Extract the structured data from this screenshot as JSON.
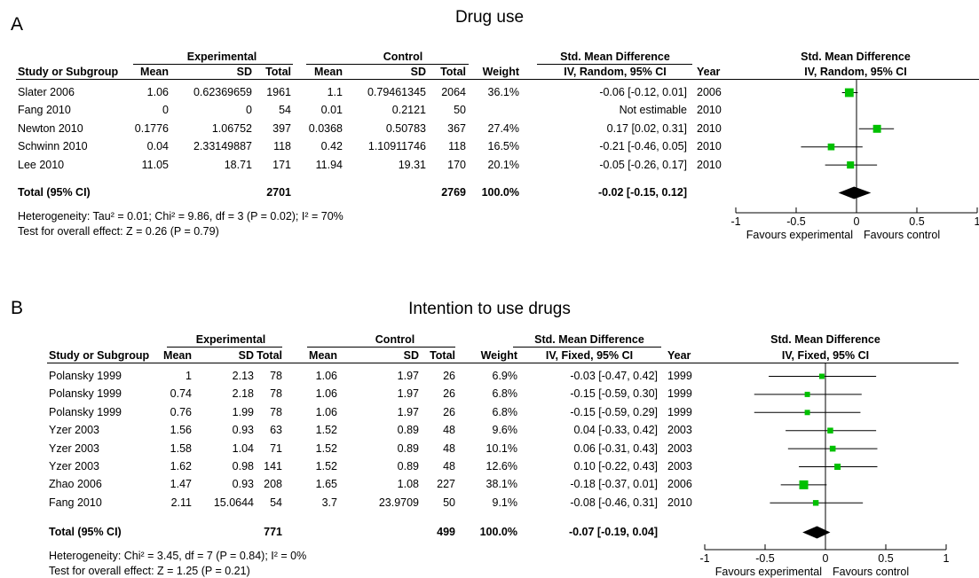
{
  "chart_data": [
    {
      "type": "forest",
      "panel_label": "A",
      "title": "Drug use",
      "headers": {
        "group_experimental": "Experimental",
        "group_control": "Control",
        "smd_top": "Std. Mean Difference",
        "smd_method": "IV, Random, 95% CI",
        "plot_top": "Std. Mean Difference",
        "plot_method": "IV, Random, 95% CI",
        "study": "Study or Subgroup",
        "mean": "Mean",
        "sd": "SD",
        "total": "Total",
        "weight": "Weight",
        "year": "Year"
      },
      "studies": [
        {
          "name": "Slater 2006",
          "exp_mean": "1.06",
          "exp_sd": "0.62369659",
          "exp_total": "1961",
          "ctl_mean": "1.1",
          "ctl_sd": "0.79461345",
          "ctl_total": "2064",
          "weight": "36.1%",
          "ci_text": "-0.06 [-0.12, 0.01]",
          "year": "2006",
          "est": -0.06,
          "lo": -0.12,
          "hi": 0.01,
          "w": 36.1
        },
        {
          "name": "Fang 2010",
          "exp_mean": "0",
          "exp_sd": "0",
          "exp_total": "54",
          "ctl_mean": "0.01",
          "ctl_sd": "0.2121",
          "ctl_total": "50",
          "weight": "",
          "ci_text": "Not estimable",
          "year": "2010",
          "est": null,
          "lo": null,
          "hi": null,
          "w": 0
        },
        {
          "name": "Newton 2010",
          "exp_mean": "0.1776",
          "exp_sd": "1.06752",
          "exp_total": "397",
          "ctl_mean": "0.0368",
          "ctl_sd": "0.50783",
          "ctl_total": "367",
          "weight": "27.4%",
          "ci_text": "0.17 [0.02, 0.31]",
          "year": "2010",
          "est": 0.17,
          "lo": 0.02,
          "hi": 0.31,
          "w": 27.4
        },
        {
          "name": "Schwinn 2010",
          "exp_mean": "0.04",
          "exp_sd": "2.33149887",
          "exp_total": "118",
          "ctl_mean": "0.42",
          "ctl_sd": "1.10911746",
          "ctl_total": "118",
          "weight": "16.5%",
          "ci_text": "-0.21 [-0.46, 0.05]",
          "year": "2010",
          "est": -0.21,
          "lo": -0.46,
          "hi": 0.05,
          "w": 16.5
        },
        {
          "name": "Lee 2010",
          "exp_mean": "11.05",
          "exp_sd": "18.71",
          "exp_total": "171",
          "ctl_mean": "11.94",
          "ctl_sd": "19.31",
          "ctl_total": "170",
          "weight": "20.1%",
          "ci_text": "-0.05 [-0.26, 0.17]",
          "year": "2010",
          "est": -0.05,
          "lo": -0.26,
          "hi": 0.17,
          "w": 20.1
        }
      ],
      "total": {
        "label": "Total (95% CI)",
        "exp_total": "2701",
        "ctl_total": "2769",
        "weight": "100.0%",
        "ci_text": "-0.02 [-0.15, 0.12]",
        "est": -0.02,
        "lo": -0.15,
        "hi": 0.12
      },
      "heterogeneity": "Heterogeneity: Tau² = 0.01; Chi² = 9.86, df = 3 (P = 0.02); I² = 70%",
      "overall_effect": "Test for overall effect: Z = 0.26 (P = 0.79)",
      "x_ticks": [
        -1,
        -0.5,
        0,
        0.5,
        1
      ],
      "x_tick_labels": [
        "-1",
        "-0.5",
        "0",
        "0.5",
        "1"
      ],
      "xlim": [
        -1,
        1
      ],
      "favours_left": "Favours experimental",
      "favours_right": "Favours control",
      "marker_color": "#00c000"
    },
    {
      "type": "forest",
      "panel_label": "B",
      "title": "Intention to use drugs",
      "headers": {
        "group_experimental": "Experimental",
        "group_control": "Control",
        "smd_top": "Std. Mean Difference",
        "smd_method": "IV, Fixed, 95% CI",
        "plot_top": "Std. Mean Difference",
        "plot_method": "IV, Fixed, 95% CI",
        "study": "Study or Subgroup",
        "mean": "Mean",
        "sd": "SD",
        "total": "Total",
        "weight": "Weight",
        "year": "Year"
      },
      "studies": [
        {
          "name": "Polansky 1999",
          "exp_mean": "1",
          "exp_sd": "2.13",
          "exp_total": "78",
          "ctl_mean": "1.06",
          "ctl_sd": "1.97",
          "ctl_total": "26",
          "weight": "6.9%",
          "ci_text": "-0.03 [-0.47, 0.42]",
          "year": "1999",
          "est": -0.03,
          "lo": -0.47,
          "hi": 0.42,
          "w": 6.9
        },
        {
          "name": "Polansky 1999",
          "exp_mean": "0.74",
          "exp_sd": "2.18",
          "exp_total": "78",
          "ctl_mean": "1.06",
          "ctl_sd": "1.97",
          "ctl_total": "26",
          "weight": "6.8%",
          "ci_text": "-0.15 [-0.59, 0.30]",
          "year": "1999",
          "est": -0.15,
          "lo": -0.59,
          "hi": 0.3,
          "w": 6.8
        },
        {
          "name": "Polansky 1999",
          "exp_mean": "0.76",
          "exp_sd": "1.99",
          "exp_total": "78",
          "ctl_mean": "1.06",
          "ctl_sd": "1.97",
          "ctl_total": "26",
          "weight": "6.8%",
          "ci_text": "-0.15 [-0.59, 0.29]",
          "year": "1999",
          "est": -0.15,
          "lo": -0.59,
          "hi": 0.29,
          "w": 6.8
        },
        {
          "name": "Yzer 2003",
          "exp_mean": "1.56",
          "exp_sd": "0.93",
          "exp_total": "63",
          "ctl_mean": "1.52",
          "ctl_sd": "0.89",
          "ctl_total": "48",
          "weight": "9.6%",
          "ci_text": "0.04 [-0.33, 0.42]",
          "year": "2003",
          "est": 0.04,
          "lo": -0.33,
          "hi": 0.42,
          "w": 9.6
        },
        {
          "name": "Yzer 2003",
          "exp_mean": "1.58",
          "exp_sd": "1.04",
          "exp_total": "71",
          "ctl_mean": "1.52",
          "ctl_sd": "0.89",
          "ctl_total": "48",
          "weight": "10.1%",
          "ci_text": "0.06 [-0.31, 0.43]",
          "year": "2003",
          "est": 0.06,
          "lo": -0.31,
          "hi": 0.43,
          "w": 10.1
        },
        {
          "name": "Yzer 2003",
          "exp_mean": "1.62",
          "exp_sd": "0.98",
          "exp_total": "141",
          "ctl_mean": "1.52",
          "ctl_sd": "0.89",
          "ctl_total": "48",
          "weight": "12.6%",
          "ci_text": "0.10 [-0.22, 0.43]",
          "year": "2003",
          "est": 0.1,
          "lo": -0.22,
          "hi": 0.43,
          "w": 12.6
        },
        {
          "name": "Zhao 2006",
          "exp_mean": "1.47",
          "exp_sd": "0.93",
          "exp_total": "208",
          "ctl_mean": "1.65",
          "ctl_sd": "1.08",
          "ctl_total": "227",
          "weight": "38.1%",
          "ci_text": "-0.18 [-0.37, 0.01]",
          "year": "2006",
          "est": -0.18,
          "lo": -0.37,
          "hi": 0.01,
          "w": 38.1
        },
        {
          "name": "Fang 2010",
          "exp_mean": "2.11",
          "exp_sd": "15.0644",
          "exp_total": "54",
          "ctl_mean": "3.7",
          "ctl_sd": "23.9709",
          "ctl_total": "50",
          "weight": "9.1%",
          "ci_text": "-0.08 [-0.46, 0.31]",
          "year": "2010",
          "est": -0.08,
          "lo": -0.46,
          "hi": 0.31,
          "w": 9.1
        }
      ],
      "total": {
        "label": "Total (95% CI)",
        "exp_total": "771",
        "ctl_total": "499",
        "weight": "100.0%",
        "ci_text": "-0.07 [-0.19, 0.04]",
        "est": -0.07,
        "lo": -0.19,
        "hi": 0.04
      },
      "heterogeneity": "Heterogeneity: Chi² = 3.45, df = 7 (P = 0.84); I² = 0%",
      "overall_effect": "Test for overall effect: Z = 1.25 (P = 0.21)",
      "x_ticks": [
        -1,
        -0.5,
        0,
        0.5,
        1
      ],
      "x_tick_labels": [
        "-1",
        "-0.5",
        "0",
        "0.5",
        "1"
      ],
      "xlim": [
        -1,
        1
      ],
      "favours_left": "Favours experimental",
      "favours_right": "Favours control",
      "marker_color": "#00c000"
    }
  ]
}
